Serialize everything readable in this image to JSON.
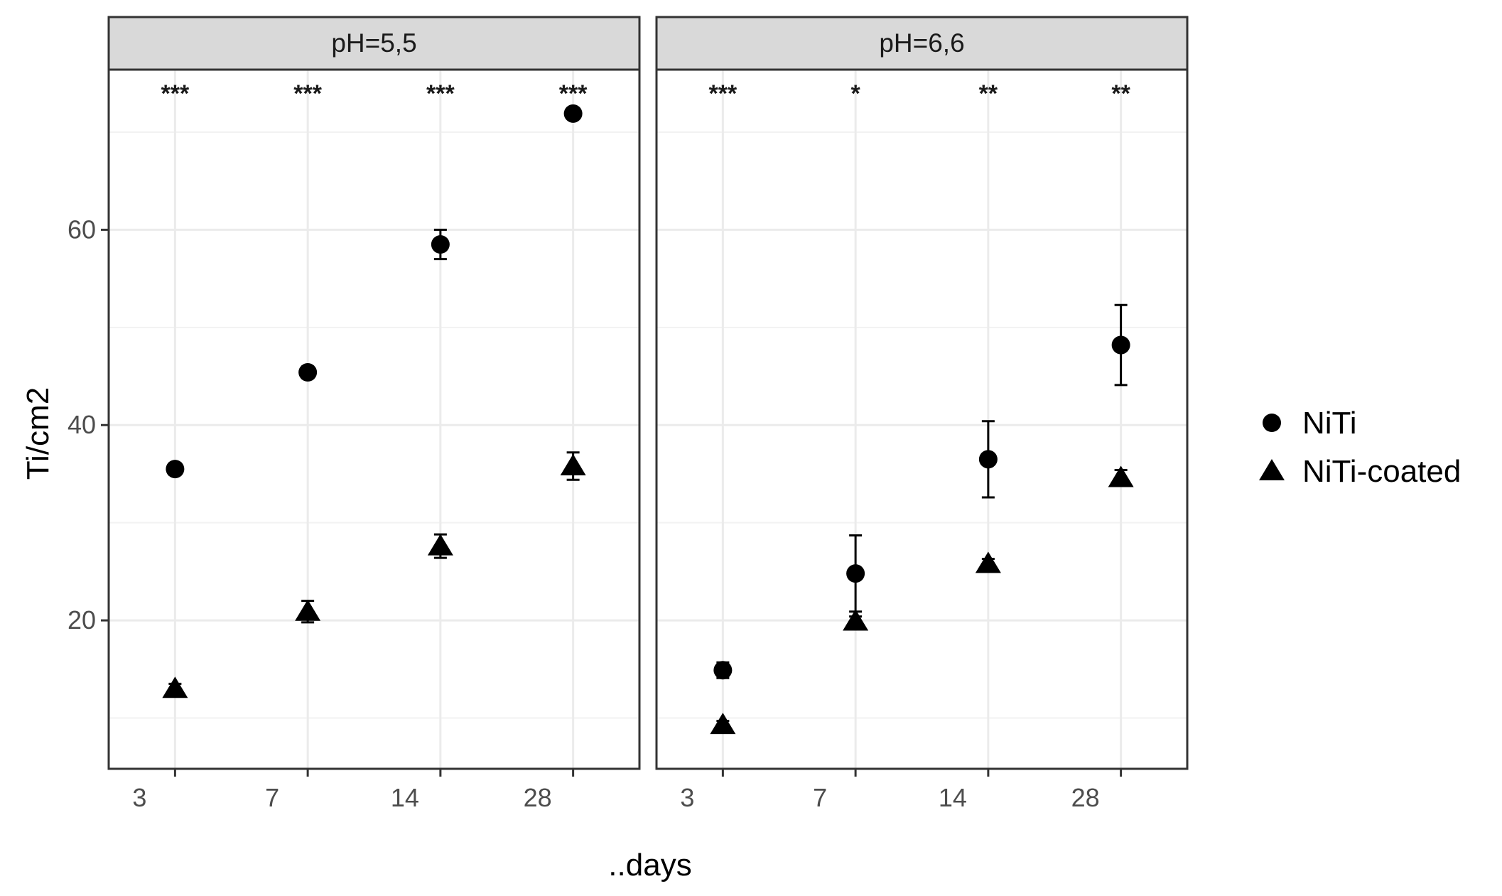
{
  "chart_data": {
    "type": "scatter",
    "facet_type": "faceted point plot with error bars",
    "xlabel": "..days",
    "ylabel": "Ti/cm2",
    "categories": [
      "3",
      "7",
      "14",
      "28"
    ],
    "ylim": [
      4.8,
      76.4
    ],
    "y_ticks": [
      20,
      40,
      60
    ],
    "grid": true,
    "legend_position": "right",
    "legend": [
      {
        "name": "NiTi",
        "marker": "circle"
      },
      {
        "name": "NiTi-coated",
        "marker": "triangle"
      }
    ],
    "colors": {
      "points": "#000000",
      "grid": "#ebebeb",
      "strip_bg": "#d9d9d9",
      "border": "#333333"
    },
    "panels": [
      {
        "strip": "pH=5,5",
        "significance": [
          "***",
          "***",
          "***",
          "***"
        ],
        "series": [
          {
            "name": "NiTi",
            "values": [
              35.5,
              45.4,
              58.5,
              71.9
            ],
            "errors": [
              0.6,
              0.6,
              1.5,
              0.5
            ]
          },
          {
            "name": "NiTi-coated",
            "values": [
              13.0,
              20.9,
              27.6,
              35.8
            ],
            "errors": [
              0.5,
              1.1,
              1.2,
              1.4
            ]
          }
        ]
      },
      {
        "strip": "pH=6,6",
        "significance": [
          "***",
          "*",
          "**",
          "**"
        ],
        "series": [
          {
            "name": "NiTi",
            "values": [
              14.9,
              24.8,
              36.5,
              48.2
            ],
            "errors": [
              0.8,
              3.9,
              3.9,
              4.1
            ]
          },
          {
            "name": "NiTi-coated",
            "values": [
              9.3,
              19.9,
              25.8,
              34.6
            ],
            "errors": [
              0.4,
              0.5,
              0.5,
              0.8
            ]
          }
        ]
      }
    ]
  }
}
